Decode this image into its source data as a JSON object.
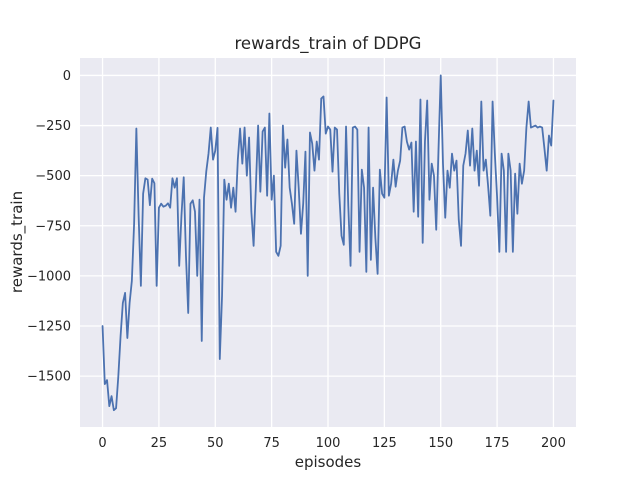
{
  "figure": {
    "background": "#ffffff",
    "text_color": "#262626"
  },
  "chart_data": {
    "type": "line",
    "title": "rewards_train of DDPG",
    "xlabel": "episodes",
    "ylabel": "rewards_train",
    "legend": "none",
    "grid": "on",
    "style": "seaborn-darkgrid",
    "plot_bg_color": "#eaeaf2",
    "grid_color": "#ffffff",
    "line_color": "#4c72b0",
    "xlim": [
      -10,
      210
    ],
    "ylim": [
      -1754,
      87
    ],
    "xticks": [
      0,
      25,
      50,
      75,
      100,
      125,
      150,
      175,
      200
    ],
    "yticks": [
      0,
      -250,
      -500,
      -750,
      -1000,
      -1250,
      -1500
    ],
    "x_is_index": true,
    "x_start": 0,
    "x_step": 1,
    "y": [
      -1250,
      -1540,
      -1520,
      -1650,
      -1600,
      -1670,
      -1660,
      -1500,
      -1300,
      -1135,
      -1085,
      -1310,
      -1135,
      -1025,
      -740,
      -265,
      -700,
      -1050,
      -590,
      -513,
      -520,
      -647,
      -515,
      -538,
      -1050,
      -660,
      -640,
      -655,
      -650,
      -638,
      -660,
      -513,
      -560,
      -513,
      -950,
      -700,
      -508,
      -900,
      -1185,
      -640,
      -623,
      -680,
      -1000,
      -620,
      -1325,
      -610,
      -480,
      -390,
      -260,
      -420,
      -375,
      -262,
      -1415,
      -1100,
      -520,
      -620,
      -540,
      -660,
      -560,
      -680,
      -420,
      -265,
      -440,
      -260,
      -500,
      -310,
      -680,
      -850,
      -560,
      -250,
      -580,
      -280,
      -260,
      -600,
      -190,
      -620,
      -500,
      -880,
      -900,
      -850,
      -250,
      -460,
      -320,
      -560,
      -640,
      -740,
      -375,
      -560,
      -790,
      -640,
      -380,
      -1000,
      -285,
      -340,
      -475,
      -330,
      -420,
      -115,
      -105,
      -290,
      -255,
      -270,
      -480,
      -260,
      -270,
      -590,
      -800,
      -845,
      -255,
      -650,
      -950,
      -260,
      -255,
      -270,
      -880,
      -470,
      -560,
      -980,
      -260,
      -920,
      -560,
      -810,
      -990,
      -470,
      -590,
      -610,
      -110,
      -600,
      -540,
      -420,
      -555,
      -475,
      -425,
      -260,
      -255,
      -330,
      -370,
      -335,
      -680,
      -330,
      -705,
      -120,
      -835,
      -330,
      -125,
      -620,
      -440,
      -500,
      -770,
      -375,
      0,
      -440,
      -710,
      -475,
      -560,
      -390,
      -475,
      -425,
      -720,
      -850,
      -450,
      -390,
      -275,
      -450,
      -265,
      -475,
      -375,
      -550,
      -130,
      -475,
      -420,
      -550,
      -700,
      -130,
      -390,
      -607,
      -880,
      -390,
      -475,
      -880,
      -390,
      -475,
      -880,
      -490,
      -690,
      -440,
      -540,
      -475,
      -260,
      -130,
      -260,
      -255,
      -250,
      -260,
      -255,
      -260,
      -365,
      -475,
      -300,
      -350,
      -125
    ]
  }
}
